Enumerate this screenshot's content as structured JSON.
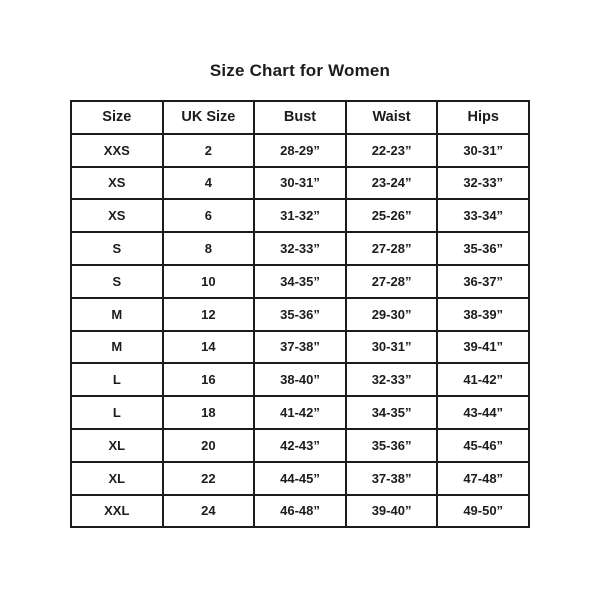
{
  "page": {
    "title": "Size Chart for Women",
    "background_color": "#ffffff",
    "text_color": "#1c1c1c",
    "border_color": "#1c1c1c"
  },
  "table": {
    "columns": [
      "Size",
      "UK Size",
      "Bust",
      "Waist",
      "Hips"
    ],
    "rows": [
      {
        "size": "XXS",
        "uk_size": "2",
        "bust": "28-29”",
        "waist": "22-23”",
        "hips": "30-31”"
      },
      {
        "size": "XS",
        "uk_size": "4",
        "bust": "30-31”",
        "waist": "23-24”",
        "hips": "32-33”"
      },
      {
        "size": "XS",
        "uk_size": "6",
        "bust": "31-32”",
        "waist": "25-26”",
        "hips": "33-34”"
      },
      {
        "size": "S",
        "uk_size": "8",
        "bust": "32-33”",
        "waist": "27-28”",
        "hips": "35-36”"
      },
      {
        "size": "S",
        "uk_size": "10",
        "bust": "34-35”",
        "waist": "27-28”",
        "hips": "36-37”"
      },
      {
        "size": "M",
        "uk_size": "12",
        "bust": "35-36”",
        "waist": "29-30”",
        "hips": "38-39”"
      },
      {
        "size": "M",
        "uk_size": "14",
        "bust": "37-38”",
        "waist": "30-31”",
        "hips": "39-41”"
      },
      {
        "size": "L",
        "uk_size": "16",
        "bust": "38-40”",
        "waist": "32-33”",
        "hips": "41-42”"
      },
      {
        "size": "L",
        "uk_size": "18",
        "bust": "41-42”",
        "waist": "34-35”",
        "hips": "43-44”"
      },
      {
        "size": "XL",
        "uk_size": "20",
        "bust": "42-43”",
        "waist": "35-36”",
        "hips": "45-46”"
      },
      {
        "size": "XL",
        "uk_size": "22",
        "bust": "44-45”",
        "waist": "37-38”",
        "hips": "47-48”"
      },
      {
        "size": "XXL",
        "uk_size": "24",
        "bust": "46-48”",
        "waist": "39-40”",
        "hips": "49-50”"
      }
    ]
  }
}
